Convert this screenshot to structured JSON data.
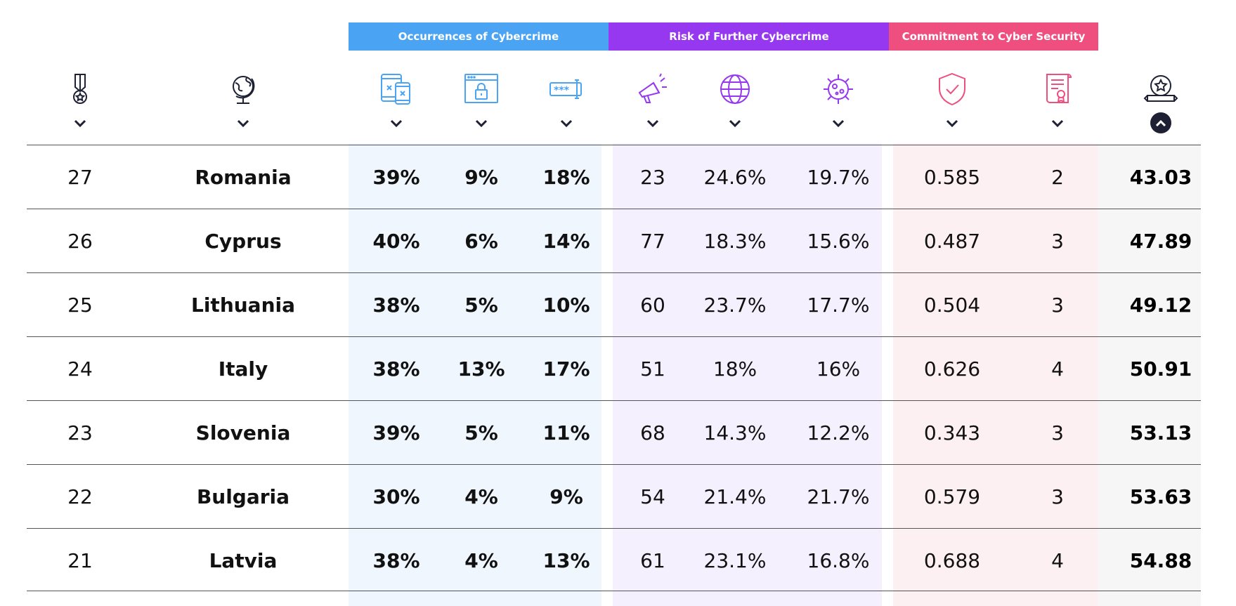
{
  "groups": {
    "occurrences": {
      "label": "Occurrences of Cybercrime",
      "color": "#4aa3f3"
    },
    "risk": {
      "label": "Risk of Further Cybercrime",
      "color": "#9638f0"
    },
    "commitment": {
      "label": "Commitment to Cyber Security",
      "color": "#ee4f7f"
    }
  },
  "columns": [
    {
      "icon": "medal-icon",
      "sort": "chevron-down-icon"
    },
    {
      "icon": "globe-icon",
      "sort": "chevron-down-icon"
    },
    {
      "icon": "devices-icon",
      "sort": "chevron-down-icon"
    },
    {
      "icon": "browser-lock-icon",
      "sort": "chevron-down-icon"
    },
    {
      "icon": "password-field-icon",
      "sort": "chevron-down-icon"
    },
    {
      "icon": "megaphone-icon",
      "sort": "chevron-down-icon"
    },
    {
      "icon": "world-web-icon",
      "sort": "chevron-down-icon"
    },
    {
      "icon": "virus-icon",
      "sort": "chevron-down-icon"
    },
    {
      "icon": "shield-check-icon",
      "sort": "chevron-down-icon"
    },
    {
      "icon": "certificate-icon",
      "sort": "chevron-down-icon"
    },
    {
      "icon": "award-badge-icon",
      "sort": "chevron-up-icon",
      "active": true
    }
  ],
  "rows": [
    {
      "rank": "27",
      "country": "Romania",
      "c1": "39%",
      "c2": "9%",
      "c3": "18%",
      "r1": "23",
      "r2": "24.6%",
      "r3": "19.7%",
      "m1": "0.585",
      "m2": "2",
      "score": "43.03"
    },
    {
      "rank": "26",
      "country": "Cyprus",
      "c1": "40%",
      "c2": "6%",
      "c3": "14%",
      "r1": "77",
      "r2": "18.3%",
      "r3": "15.6%",
      "m1": "0.487",
      "m2": "3",
      "score": "47.89"
    },
    {
      "rank": "25",
      "country": "Lithuania",
      "c1": "38%",
      "c2": "5%",
      "c3": "10%",
      "r1": "60",
      "r2": "23.7%",
      "r3": "17.7%",
      "m1": "0.504",
      "m2": "3",
      "score": "49.12"
    },
    {
      "rank": "24",
      "country": "Italy",
      "c1": "38%",
      "c2": "13%",
      "c3": "17%",
      "r1": "51",
      "r2": "18%",
      "r3": "16%",
      "m1": "0.626",
      "m2": "4",
      "score": "50.91"
    },
    {
      "rank": "23",
      "country": "Slovenia",
      "c1": "39%",
      "c2": "5%",
      "c3": "11%",
      "r1": "68",
      "r2": "14.3%",
      "r3": "12.2%",
      "m1": "0.343",
      "m2": "3",
      "score": "53.13"
    },
    {
      "rank": "22",
      "country": "Bulgaria",
      "c1": "30%",
      "c2": "4%",
      "c3": "9%",
      "r1": "54",
      "r2": "21.4%",
      "r3": "21.7%",
      "m1": "0.579",
      "m2": "3",
      "score": "53.63"
    },
    {
      "rank": "21",
      "country": "Latvia",
      "c1": "38%",
      "c2": "4%",
      "c3": "13%",
      "r1": "61",
      "r2": "23.1%",
      "r3": "16.8%",
      "m1": "0.688",
      "m2": "4",
      "score": "54.88"
    }
  ]
}
